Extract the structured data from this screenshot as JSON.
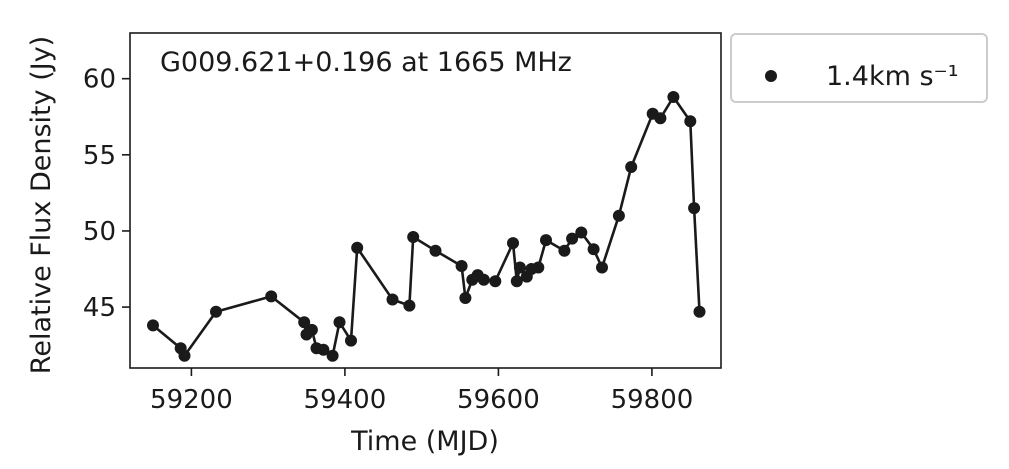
{
  "chart_data": {
    "type": "line",
    "title": "",
    "annotation": "G009.621+0.196 at 1665 MHz",
    "xlabel": "Time (MJD)",
    "ylabel": "Relative Flux Density (Jy)",
    "xlim": [
      59120,
      59890
    ],
    "ylim": [
      41.0,
      63.0
    ],
    "xticks": [
      59200,
      59400,
      59600,
      59800
    ],
    "xtick_labels": [
      "59200",
      "59400",
      "59600",
      "59800"
    ],
    "yticks": [
      45,
      50,
      55,
      60
    ],
    "ytick_labels": [
      "45",
      "50",
      "55",
      "60"
    ],
    "grid": false,
    "legend_position": "outside-top-right",
    "line_color": "#1a1a1a",
    "marker_color": "#1a1a1a",
    "series": [
      {
        "name": "1.4km s⁻¹",
        "points": [
          [
            59150,
            43.8
          ],
          [
            59186,
            42.3
          ],
          [
            59191,
            41.8
          ],
          [
            59232,
            44.7
          ],
          [
            59304,
            45.7
          ],
          [
            59347,
            44.0
          ],
          [
            59350,
            43.2
          ],
          [
            59357,
            43.5
          ],
          [
            59363,
            42.3
          ],
          [
            59372,
            42.2
          ],
          [
            59384,
            41.8
          ],
          [
            59393,
            44.0
          ],
          [
            59408,
            42.8
          ],
          [
            59416,
            48.9
          ],
          [
            59462,
            45.5
          ],
          [
            59484,
            45.1
          ],
          [
            59489,
            49.6
          ],
          [
            59518,
            48.7
          ],
          [
            59552,
            47.7
          ],
          [
            59557,
            45.6
          ],
          [
            59566,
            46.8
          ],
          [
            59573,
            47.1
          ],
          [
            59581,
            46.8
          ],
          [
            59596,
            46.7
          ],
          [
            59619,
            49.2
          ],
          [
            59624,
            46.7
          ],
          [
            59628,
            47.6
          ],
          [
            59637,
            47.0
          ],
          [
            59643,
            47.5
          ],
          [
            59652,
            47.6
          ],
          [
            59662,
            49.4
          ],
          [
            59686,
            48.7
          ],
          [
            59696,
            49.5
          ],
          [
            59708,
            49.9
          ],
          [
            59724,
            48.8
          ],
          [
            59735,
            47.6
          ],
          [
            59757,
            51.0
          ],
          [
            59773,
            54.2
          ],
          [
            59801,
            57.7
          ],
          [
            59811,
            57.4
          ],
          [
            59828,
            58.8
          ],
          [
            59850,
            57.2
          ],
          [
            59855,
            51.5
          ],
          [
            59862,
            44.7
          ]
        ]
      }
    ]
  }
}
